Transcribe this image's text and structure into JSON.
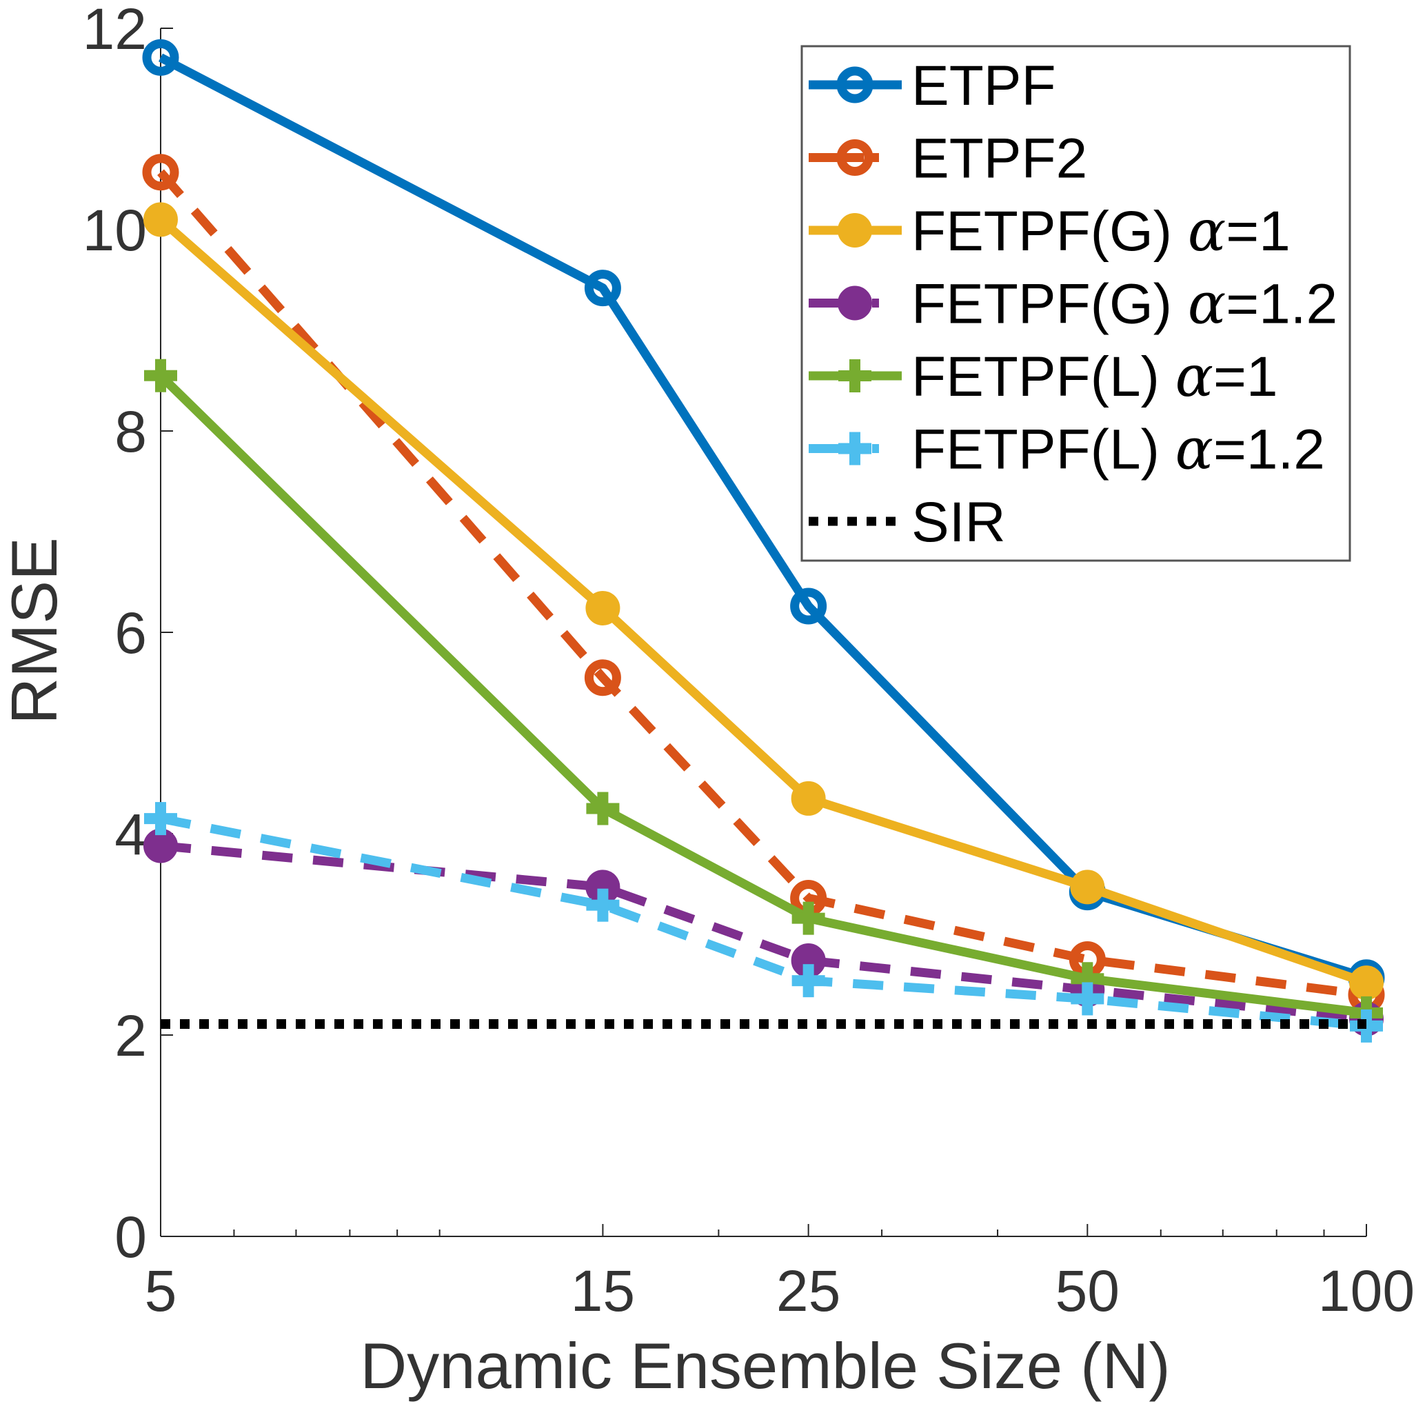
{
  "chart_data": {
    "type": "line",
    "title": "",
    "xlabel": "Dynamic Ensemble Size (N)",
    "ylabel": "RMSE",
    "x_scale": "log",
    "x": [
      5,
      15,
      25,
      50,
      100
    ],
    "x_tick_labels": [
      "5",
      "15",
      "25",
      "50",
      "100"
    ],
    "xlim": [
      5,
      100
    ],
    "ylim": [
      0,
      12
    ],
    "y_ticks": [
      0,
      2,
      4,
      6,
      8,
      10,
      12
    ],
    "y_tick_labels": [
      "0",
      "2",
      "4",
      "6",
      "8",
      "10",
      "12"
    ],
    "grid": false,
    "legend_position": "top-right",
    "series": [
      {
        "name": "ETPF",
        "label_main": "ETPF",
        "label_alpha": "",
        "label_suffix": "",
        "color": "#0072BD",
        "line_style": "solid",
        "marker": "circle",
        "values": [
          11.71,
          9.42,
          6.26,
          3.42,
          2.57
        ]
      },
      {
        "name": "ETPF2",
        "label_main": "ETPF2",
        "label_alpha": "",
        "label_suffix": "",
        "color": "#D95319",
        "line_style": "dashed",
        "marker": "circle",
        "values": [
          10.57,
          5.55,
          3.36,
          2.75,
          2.4
        ]
      },
      {
        "name": "FETPF(G) α=1",
        "label_main": "FETPF(G) ",
        "label_alpha": "α",
        "label_suffix": "=1",
        "color": "#EDB120",
        "line_style": "solid",
        "marker": "filled-circle",
        "values": [
          10.1,
          6.24,
          4.35,
          3.47,
          2.52
        ]
      },
      {
        "name": "FETPF(G) α=1.2",
        "label_main": "FETPF(G) ",
        "label_alpha": "α",
        "label_suffix": "=1.2",
        "color": "#7E2F8E",
        "line_style": "dashed",
        "marker": "filled-circle",
        "values": [
          3.88,
          3.47,
          2.74,
          2.45,
          2.16
        ]
      },
      {
        "name": "FETPF(L) α=1",
        "label_main": "FETPF(L) ",
        "label_alpha": "α",
        "label_suffix": "=1",
        "color": "#77AC30",
        "line_style": "solid",
        "marker": "plus",
        "values": [
          8.55,
          4.25,
          3.16,
          2.56,
          2.22
        ]
      },
      {
        "name": "FETPF(L) α=1.2",
        "label_main": "FETPF(L) ",
        "label_alpha": "α",
        "label_suffix": "=1.2",
        "color": "#4DBEEE",
        "line_style": "dashed",
        "marker": "plus",
        "values": [
          4.15,
          3.29,
          2.54,
          2.36,
          2.09
        ]
      },
      {
        "name": "SIR",
        "label_main": "SIR",
        "label_alpha": "",
        "label_suffix": "",
        "color": "#000000",
        "line_style": "dotted",
        "marker": "none",
        "values": [
          2.11,
          2.11,
          2.11,
          2.11,
          2.11
        ]
      }
    ]
  }
}
